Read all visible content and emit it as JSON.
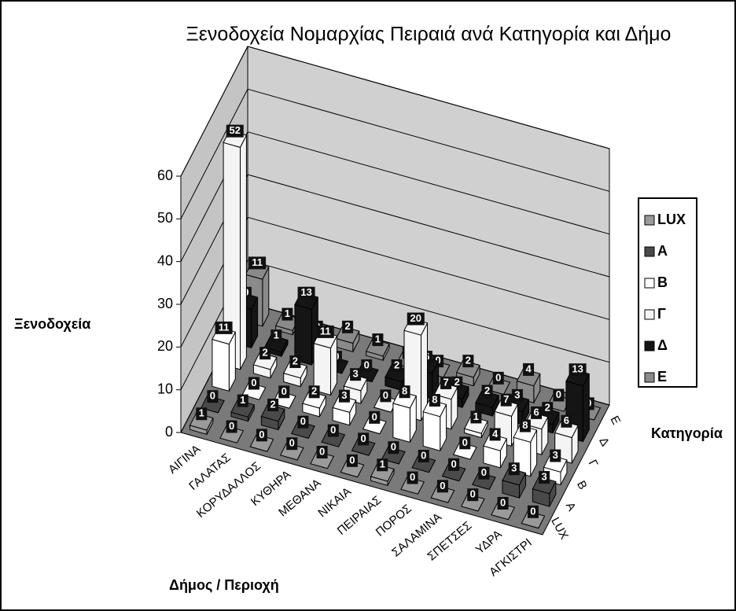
{
  "chart_data": {
    "type": "bar3d",
    "title": "Ξενοδοχεία Νομαρχίας Πειραιά ανά Κατηγορία και Δήμο",
    "y_label": "Ξενοδοχεία",
    "x_label": "Δήμος / Περιοχή",
    "z_label": "Κατηγορία",
    "categories": [
      "ΑΙΓΙΝΑ",
      "ΓΑΛΑΤΑΣ",
      "ΚΟΡΥΔΑΛΛΟΣ",
      "ΚΥΘΗΡΑ",
      "ΜΕΘΑΝΑ",
      "ΝΙΚΑΙΑ",
      "ΠΕΙΡΑΙΑΣ",
      "ΠΟΡΟΣ",
      "ΣΑΛΑΜΙΝΑ",
      "ΣΠΕΤΣΕΣ",
      "ΥΔΡΑ",
      "ΑΓΚΙΣΤΡΙ"
    ],
    "series": [
      {
        "name": "LUX",
        "color": "#9a9a9a",
        "values": [
          1,
          0,
          0,
          0,
          0,
          0,
          1,
          0,
          0,
          0,
          0,
          0
        ]
      },
      {
        "name": "A",
        "color": "#4a4a4a",
        "values": [
          0,
          1,
          2,
          0,
          0,
          0,
          0,
          0,
          0,
          0,
          3,
          3
        ]
      },
      {
        "name": "B",
        "color": "#ffffff",
        "values": [
          11,
          0,
          0,
          2,
          3,
          0,
          8,
          8,
          0,
          4,
          8,
          3
        ]
      },
      {
        "name": "Γ",
        "color": "#f4f4f4",
        "values": [
          52,
          2,
          2,
          11,
          3,
          0,
          20,
          7,
          1,
          7,
          6,
          6
        ]
      },
      {
        "name": "Δ",
        "color": "#151515",
        "values": [
          9,
          1,
          13,
          0,
          0,
          2,
          6,
          2,
          2,
          3,
          2,
          13
        ]
      },
      {
        "name": "E",
        "color": "#8a8a8a",
        "values": [
          11,
          1,
          0,
          2,
          1,
          0,
          0,
          2,
          0,
          4,
          0,
          0
        ]
      }
    ],
    "ylim": [
      0,
      60
    ],
    "yticks": [
      0,
      10,
      20,
      30,
      40,
      50,
      60
    ],
    "grid": true
  }
}
